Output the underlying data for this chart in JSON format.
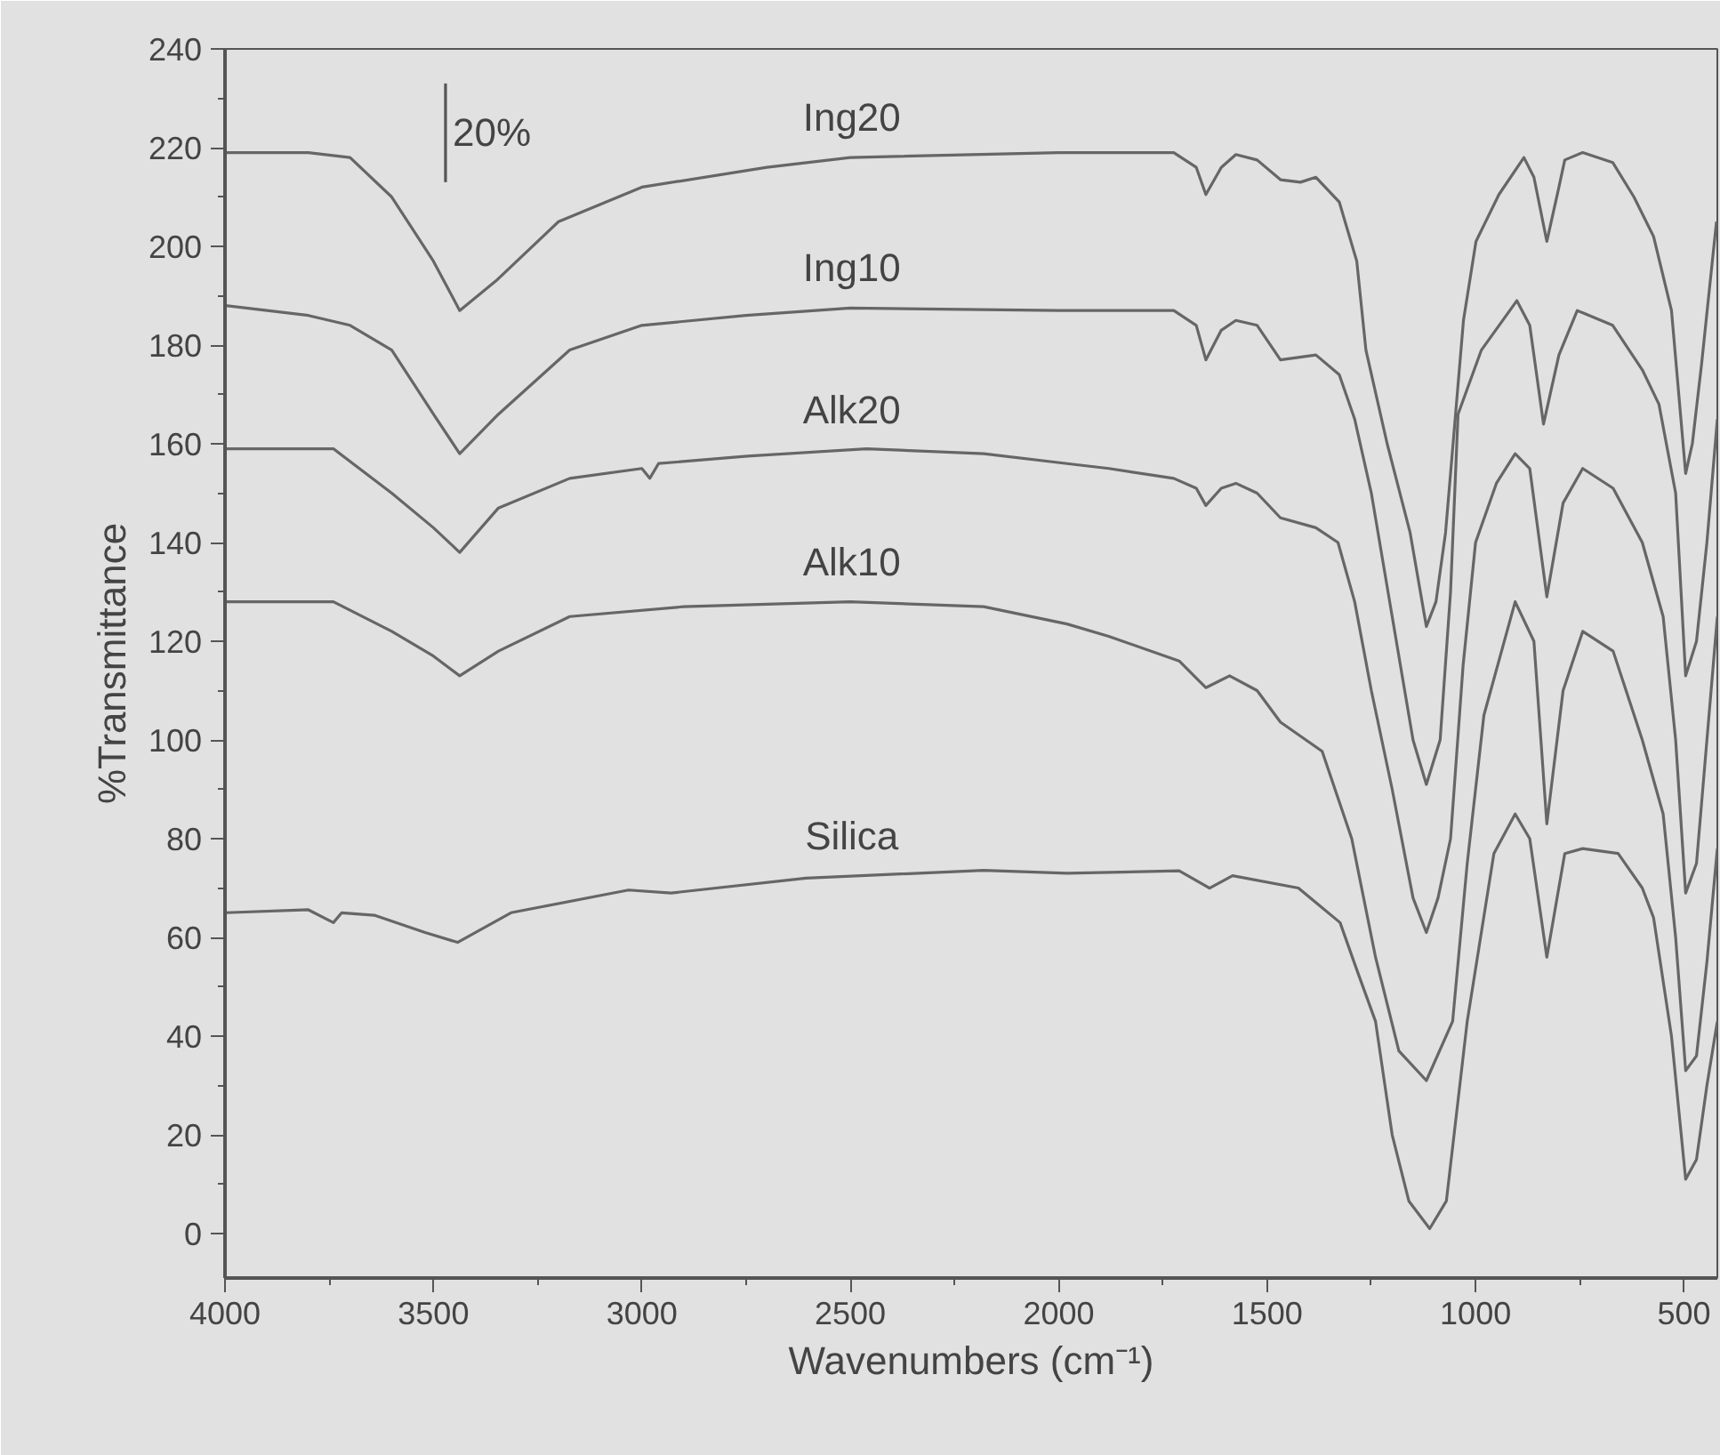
{
  "chart_data": {
    "type": "line",
    "xlabel": "Wavenumbers (cm⁻¹)",
    "ylabel": "%Transmittance",
    "xlim": [
      4000,
      420
    ],
    "ylim": [
      -9,
      240
    ],
    "xticks": [
      4000,
      3500,
      3000,
      2500,
      2000,
      1500,
      1000,
      500
    ],
    "yticks": [
      0,
      20,
      40,
      60,
      80,
      100,
      120,
      140,
      160,
      180,
      200,
      220,
      240
    ],
    "grid": false,
    "annotations": [
      {
        "text": "20%",
        "x": 3471,
        "y": 223
      }
    ],
    "series": [
      {
        "name": "Ing20",
        "color": "#666666",
        "x": [
          4000,
          3800,
          3700,
          3600,
          3500,
          3437,
          3350,
          3200,
          3000,
          2700,
          2500,
          2000,
          1724,
          1670,
          1647,
          1610,
          1575,
          1524,
          1468,
          1420,
          1383,
          1327,
          1285,
          1263,
          1212,
          1157,
          1118,
          1095,
          1072,
          1029,
          999,
          944,
          884,
          860,
          829,
          800,
          786,
          743,
          671,
          620,
          573,
          530,
          496,
          480,
          458,
          432,
          422
        ],
        "values": [
          219,
          219,
          218,
          210,
          197,
          187,
          193,
          205,
          212,
          216,
          218,
          219,
          219,
          216,
          210.5,
          216,
          218.6,
          217.5,
          213.5,
          213,
          214,
          209,
          197,
          179,
          160,
          142,
          123,
          128,
          142,
          185,
          201,
          210.5,
          218,
          214,
          201,
          212,
          217.5,
          219,
          217,
          210,
          202,
          187,
          154,
          160,
          176,
          197,
          205
        ]
      },
      {
        "name": "Ing10",
        "color": "#666666",
        "x": [
          4000,
          3800,
          3700,
          3600,
          3500,
          3437,
          3344,
          3173,
          3000,
          2750,
          2500,
          2000,
          1724,
          1670,
          1647,
          1610,
          1575,
          1524,
          1468,
          1383,
          1327,
          1290,
          1250,
          1200,
          1150,
          1118,
          1085,
          1060,
          1042,
          986,
          901,
          870,
          837,
          800,
          756,
          671,
          600,
          560,
          520,
          496,
          470,
          445,
          420
        ],
        "values": [
          188,
          186,
          184,
          179,
          166,
          158,
          166,
          179,
          184,
          186,
          187.5,
          187,
          187,
          184,
          177,
          183,
          185,
          184,
          177,
          178,
          174,
          165,
          150,
          125,
          100,
          91,
          100,
          130,
          166,
          179,
          189,
          184,
          164,
          178,
          187,
          184,
          175,
          168,
          150,
          113,
          120,
          140,
          165
        ]
      },
      {
        "name": "Alk20",
        "color": "#666666",
        "x": [
          4000,
          3740,
          3600,
          3500,
          3437,
          3344,
          3173,
          3000,
          2981,
          2960,
          2747,
          2461,
          2180,
          1980,
          1880,
          1724,
          1670,
          1647,
          1610,
          1575,
          1524,
          1468,
          1383,
          1330,
          1290,
          1250,
          1200,
          1150,
          1118,
          1090,
          1060,
          1030,
          1000,
          950,
          905,
          870,
          829,
          790,
          743,
          670,
          600,
          550,
          520,
          496,
          470,
          445,
          420
        ],
        "values": [
          159,
          159,
          150,
          143,
          138,
          147,
          153,
          155,
          153,
          156,
          157.5,
          159,
          158,
          156,
          155,
          153,
          151,
          147.5,
          151,
          152,
          150,
          145,
          143,
          140,
          128,
          110,
          90,
          68,
          61,
          68,
          80,
          115,
          140,
          152,
          158,
          155,
          129,
          148,
          155,
          151,
          140,
          125,
          100,
          69,
          75,
          100,
          125
        ]
      },
      {
        "name": "Alk10",
        "color": "#666666",
        "x": [
          4000,
          3740,
          3600,
          3500,
          3437,
          3344,
          3173,
          2900,
          2500,
          2180,
          1980,
          1880,
          1711,
          1647,
          1590,
          1524,
          1468,
          1368,
          1297,
          1240,
          1184,
          1118,
          1055,
          1020,
          980,
          905,
          860,
          829,
          790,
          743,
          670,
          600,
          550,
          520,
          496,
          470,
          445,
          420
        ],
        "values": [
          128,
          128,
          122,
          117,
          113,
          118,
          125,
          127,
          128,
          127,
          123.5,
          121,
          116,
          110.6,
          113,
          110,
          103.6,
          97.7,
          80,
          56,
          37,
          31,
          43,
          75,
          105,
          128,
          120,
          83,
          110,
          122,
          118,
          100,
          85,
          60,
          33,
          36,
          55,
          78
        ]
      },
      {
        "name": "Silica",
        "color": "#666666",
        "x": [
          4000,
          3800,
          3740,
          3720,
          3642,
          3520,
          3442,
          3314,
          3032,
          2930,
          2606,
          2180,
          1980,
          1711,
          1638,
          1583,
          1425,
          1325,
          1283,
          1240,
          1200,
          1160,
          1110,
          1070,
          1020,
          956,
          905,
          870,
          829,
          786,
          743,
          658,
          600,
          573,
          530,
          496,
          470,
          445,
          420
        ],
        "values": [
          65,
          65.6,
          63,
          65,
          64.5,
          61,
          59,
          65,
          69.6,
          69,
          72,
          73.6,
          73,
          73.5,
          70,
          72.5,
          70,
          63,
          53,
          43,
          20,
          6.6,
          1,
          6.6,
          43,
          77,
          85,
          80,
          56,
          77,
          78,
          77,
          70,
          64,
          40,
          11,
          15,
          30,
          43
        ]
      },
      {
        "color": "#555555",
        "x": [
          3471,
          3471
        ],
        "values": [
          233,
          213
        ]
      }
    ]
  }
}
